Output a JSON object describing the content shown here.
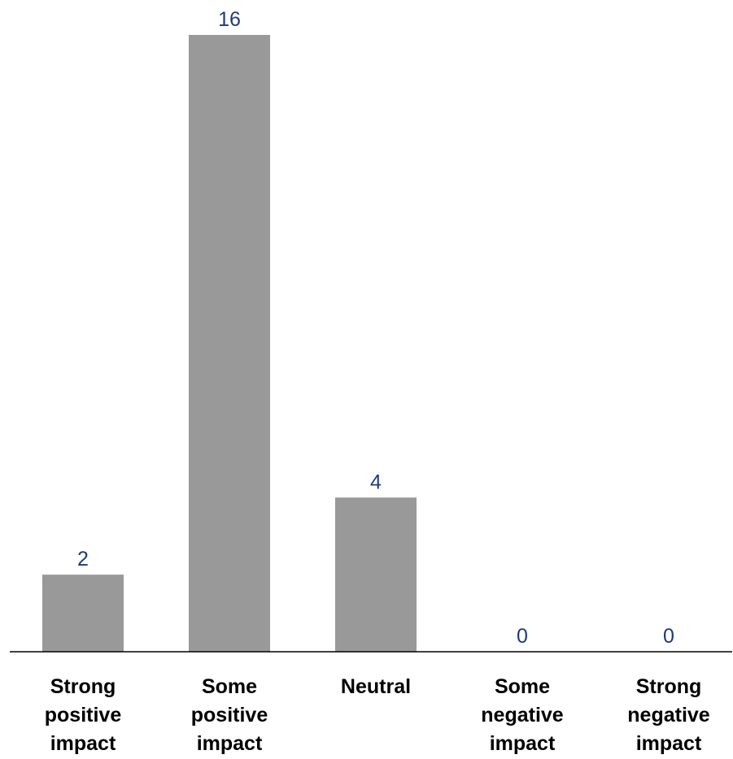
{
  "chart_data": {
    "type": "bar",
    "categories": [
      [
        "Strong",
        "positive",
        "impact"
      ],
      [
        "Some",
        "positive",
        "impact"
      ],
      [
        "Neutral"
      ],
      [
        "Some",
        "negative",
        "impact"
      ],
      [
        "Strong",
        "negative",
        "impact"
      ]
    ],
    "values": [
      2,
      16,
      4,
      0,
      0
    ],
    "data_labels": [
      "2",
      "16",
      "4",
      "0",
      "0"
    ],
    "ylim": [
      0,
      16
    ],
    "title": "",
    "xlabel": "",
    "ylabel": "",
    "grid": false,
    "legend": "none",
    "colors": {
      "bar": "#999999",
      "value_label": "#1f3a7a",
      "category_label": "#000000",
      "axis": "#000000"
    }
  }
}
